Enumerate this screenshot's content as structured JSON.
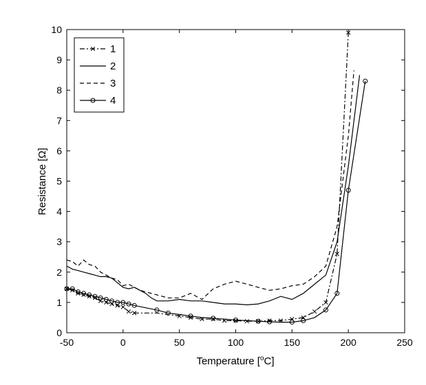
{
  "chart_data": {
    "type": "line",
    "xlabel_prefix": "Temperature [",
    "xlabel_sup": "o",
    "xlabel_suffix": "C]",
    "ylabel": "Resistance [Ω]",
    "xlim": [
      -50,
      250
    ],
    "ylim": [
      0,
      10
    ],
    "xticks": [
      -50,
      0,
      50,
      100,
      150,
      200,
      250
    ],
    "yticks": [
      0,
      1,
      2,
      3,
      4,
      5,
      6,
      7,
      8,
      9,
      10
    ],
    "grid": false,
    "legend_position": "top-left",
    "series": [
      {
        "name": "1",
        "style": "dashdot-x",
        "points": [
          [
            -50,
            1.45
          ],
          [
            -45,
            1.4
          ],
          [
            -40,
            1.3
          ],
          [
            -35,
            1.25
          ],
          [
            -30,
            1.2
          ],
          [
            -25,
            1.15
          ],
          [
            -20,
            1.05
          ],
          [
            -15,
            1.0
          ],
          [
            -10,
            0.95
          ],
          [
            -5,
            0.9
          ],
          [
            0,
            0.85
          ],
          [
            5,
            0.7
          ],
          [
            10,
            0.65
          ],
          [
            20,
            0.65
          ],
          [
            30,
            0.65
          ],
          [
            40,
            0.6
          ],
          [
            50,
            0.55
          ],
          [
            60,
            0.5
          ],
          [
            70,
            0.45
          ],
          [
            80,
            0.45
          ],
          [
            90,
            0.4
          ],
          [
            100,
            0.4
          ],
          [
            110,
            0.38
          ],
          [
            120,
            0.38
          ],
          [
            130,
            0.4
          ],
          [
            140,
            0.4
          ],
          [
            150,
            0.45
          ],
          [
            160,
            0.5
          ],
          [
            170,
            0.7
          ],
          [
            180,
            1.0
          ],
          [
            190,
            2.6
          ],
          [
            200,
            9.9
          ]
        ],
        "markers": [
          [
            -50,
            1.45
          ],
          [
            -45,
            1.4
          ],
          [
            -40,
            1.3
          ],
          [
            -35,
            1.25
          ],
          [
            -30,
            1.2
          ],
          [
            -25,
            1.15
          ],
          [
            -20,
            1.05
          ],
          [
            -15,
            1.0
          ],
          [
            -10,
            0.95
          ],
          [
            -5,
            0.9
          ],
          [
            0,
            0.85
          ],
          [
            5,
            0.7
          ],
          [
            10,
            0.65
          ],
          [
            50,
            0.55
          ],
          [
            60,
            0.5
          ],
          [
            70,
            0.45
          ],
          [
            80,
            0.45
          ],
          [
            90,
            0.4
          ],
          [
            100,
            0.4
          ],
          [
            110,
            0.38
          ],
          [
            120,
            0.38
          ],
          [
            130,
            0.4
          ],
          [
            140,
            0.4
          ],
          [
            150,
            0.45
          ],
          [
            160,
            0.5
          ],
          [
            170,
            0.7
          ],
          [
            180,
            1.0
          ],
          [
            190,
            2.6
          ],
          [
            200,
            9.9
          ]
        ]
      },
      {
        "name": "2",
        "style": "solid",
        "points": [
          [
            -50,
            2.2
          ],
          [
            -45,
            2.1
          ],
          [
            -40,
            2.05
          ],
          [
            -35,
            2.0
          ],
          [
            -30,
            1.95
          ],
          [
            -25,
            1.9
          ],
          [
            -20,
            1.85
          ],
          [
            -15,
            1.85
          ],
          [
            -10,
            1.8
          ],
          [
            -5,
            1.65
          ],
          [
            0,
            1.5
          ],
          [
            5,
            1.45
          ],
          [
            10,
            1.5
          ],
          [
            15,
            1.4
          ],
          [
            20,
            1.3
          ],
          [
            25,
            1.15
          ],
          [
            30,
            1.05
          ],
          [
            40,
            1.05
          ],
          [
            50,
            1.1
          ],
          [
            60,
            1.05
          ],
          [
            70,
            1.05
          ],
          [
            80,
            1.0
          ],
          [
            90,
            0.95
          ],
          [
            100,
            0.95
          ],
          [
            110,
            0.92
          ],
          [
            120,
            0.95
          ],
          [
            130,
            1.05
          ],
          [
            140,
            1.2
          ],
          [
            150,
            1.1
          ],
          [
            160,
            1.3
          ],
          [
            170,
            1.6
          ],
          [
            180,
            1.9
          ],
          [
            190,
            3.0
          ],
          [
            200,
            5.5
          ],
          [
            210,
            8.5
          ]
        ]
      },
      {
        "name": "3",
        "style": "dashed",
        "points": [
          [
            -50,
            2.4
          ],
          [
            -45,
            2.35
          ],
          [
            -40,
            2.2
          ],
          [
            -35,
            2.4
          ],
          [
            -30,
            2.25
          ],
          [
            -25,
            2.2
          ],
          [
            -20,
            2.0
          ],
          [
            -15,
            1.9
          ],
          [
            -10,
            1.8
          ],
          [
            -5,
            1.75
          ],
          [
            0,
            1.55
          ],
          [
            5,
            1.6
          ],
          [
            10,
            1.5
          ],
          [
            15,
            1.4
          ],
          [
            20,
            1.35
          ],
          [
            30,
            1.25
          ],
          [
            40,
            1.15
          ],
          [
            50,
            1.15
          ],
          [
            60,
            1.3
          ],
          [
            70,
            1.1
          ],
          [
            80,
            1.45
          ],
          [
            90,
            1.6
          ],
          [
            100,
            1.7
          ],
          [
            110,
            1.6
          ],
          [
            120,
            1.5
          ],
          [
            130,
            1.4
          ],
          [
            140,
            1.45
          ],
          [
            150,
            1.55
          ],
          [
            160,
            1.6
          ],
          [
            170,
            1.85
          ],
          [
            180,
            2.2
          ],
          [
            190,
            3.5
          ],
          [
            200,
            6.5
          ],
          [
            205,
            8.65
          ]
        ]
      },
      {
        "name": "4",
        "style": "solid-o",
        "points": [
          [
            -50,
            1.45
          ],
          [
            -45,
            1.45
          ],
          [
            -40,
            1.35
          ],
          [
            -35,
            1.3
          ],
          [
            -30,
            1.25
          ],
          [
            -25,
            1.2
          ],
          [
            -20,
            1.15
          ],
          [
            -15,
            1.1
          ],
          [
            -10,
            1.05
          ],
          [
            -5,
            1.0
          ],
          [
            0,
            1.0
          ],
          [
            5,
            0.95
          ],
          [
            10,
            0.9
          ],
          [
            30,
            0.75
          ],
          [
            40,
            0.65
          ],
          [
            50,
            0.6
          ],
          [
            60,
            0.55
          ],
          [
            70,
            0.5
          ],
          [
            80,
            0.48
          ],
          [
            90,
            0.45
          ],
          [
            100,
            0.42
          ],
          [
            110,
            0.4
          ],
          [
            120,
            0.38
          ],
          [
            130,
            0.36
          ],
          [
            140,
            0.35
          ],
          [
            150,
            0.35
          ],
          [
            160,
            0.4
          ],
          [
            170,
            0.5
          ],
          [
            180,
            0.75
          ],
          [
            190,
            1.3
          ],
          [
            200,
            4.7
          ],
          [
            215,
            8.3
          ]
        ],
        "markers": [
          [
            -50,
            1.45
          ],
          [
            -45,
            1.45
          ],
          [
            -40,
            1.35
          ],
          [
            -35,
            1.3
          ],
          [
            -30,
            1.25
          ],
          [
            -25,
            1.2
          ],
          [
            -20,
            1.15
          ],
          [
            -15,
            1.1
          ],
          [
            -10,
            1.05
          ],
          [
            -5,
            1.0
          ],
          [
            0,
            1.0
          ],
          [
            5,
            0.95
          ],
          [
            10,
            0.9
          ],
          [
            30,
            0.75
          ],
          [
            40,
            0.65
          ],
          [
            60,
            0.55
          ],
          [
            80,
            0.48
          ],
          [
            100,
            0.42
          ],
          [
            120,
            0.38
          ],
          [
            130,
            0.36
          ],
          [
            150,
            0.35
          ],
          [
            160,
            0.4
          ],
          [
            180,
            0.75
          ],
          [
            190,
            1.3
          ],
          [
            200,
            4.7
          ],
          [
            215,
            8.3
          ]
        ]
      }
    ]
  }
}
